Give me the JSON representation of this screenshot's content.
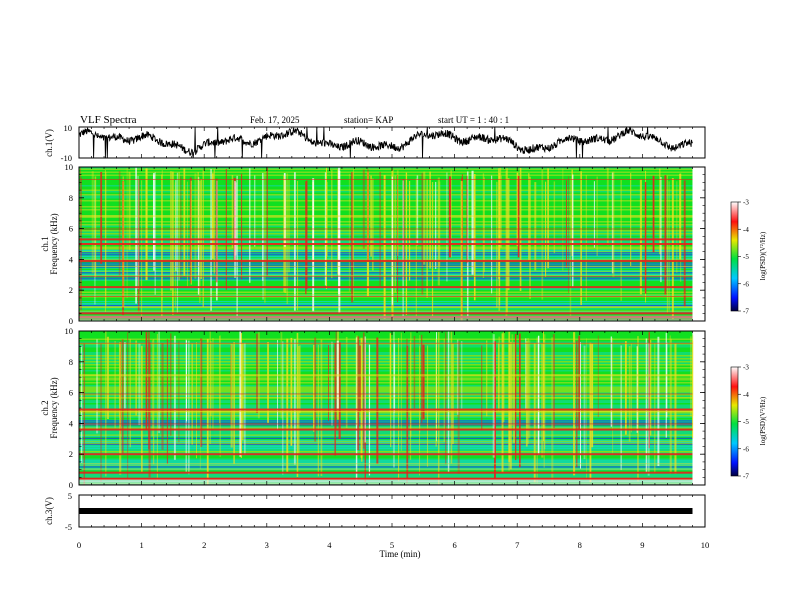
{
  "header": {
    "title": "VLF Spectra",
    "date": "Feb. 17, 2025",
    "station": "station= KAP",
    "start_ut": "start  UT =   1 : 40 : 1"
  },
  "chart_data": [
    {
      "type": "line",
      "name": "ch1-waveform",
      "ylabel": "ch.1(V)",
      "ylim": [
        -10,
        10
      ],
      "y_tick_labels": [
        "10",
        "-10"
      ],
      "x_range_min": [
        0,
        9.8
      ]
    },
    {
      "type": "heatmap",
      "name": "ch1-spectrogram",
      "ylabel": "ch.1\nFrequency  (kHz)",
      "ylim": [
        0,
        10
      ],
      "y_ticks": [
        0,
        2,
        4,
        6,
        8,
        10
      ],
      "x_range_min": [
        0,
        9.8
      ],
      "bands_khz": {
        "strong_red_lines": [
          0.25,
          0.5,
          2.2,
          3.9,
          5.0,
          5.3
        ],
        "blue_bands": [
          [
            2.7,
            3.3
          ],
          [
            3.5,
            3.8
          ],
          [
            4.0,
            4.6
          ],
          [
            1.0,
            1.3
          ]
        ]
      },
      "colorbar": {
        "label": "log(PSD)(V²/Hz)",
        "ticks": [
          "-3",
          "-4",
          "-5",
          "-6",
          "-7"
        ],
        "range": [
          -7,
          -3
        ]
      }
    },
    {
      "type": "heatmap",
      "name": "ch2-spectrogram",
      "ylabel": "ch.2\nFrequency  (kHz)",
      "ylim": [
        0,
        10
      ],
      "y_ticks": [
        0,
        2,
        4,
        6,
        8,
        10
      ],
      "x_range_min": [
        0,
        9.8
      ],
      "bands_khz": {
        "strong_red_lines": [
          0.4,
          0.8,
          2.0,
          3.6,
          4.9
        ],
        "blue_bands": [
          [
            2.3,
            3.2
          ],
          [
            1.0,
            1.6
          ],
          [
            3.7,
            4.2
          ]
        ]
      },
      "colorbar": {
        "label": "log(PSD)(V²/Hz)",
        "ticks": [
          "-3",
          "-4",
          "-5",
          "-6",
          "-7"
        ],
        "range": [
          -7,
          -3
        ]
      }
    },
    {
      "type": "line",
      "name": "ch3-signal",
      "ylabel": "ch.3(V)",
      "ylim": [
        -5,
        5
      ],
      "y_tick_labels": [
        "5",
        "-5"
      ],
      "x_range_min": [
        0,
        9.8
      ],
      "level_v": 0
    }
  ],
  "x_axis": {
    "label": "Time  (min)",
    "range": [
      0,
      10
    ],
    "tick_labels": [
      "0",
      "1",
      "2",
      "3",
      "4",
      "5",
      "6",
      "7",
      "8",
      "9",
      "10"
    ]
  },
  "colors": {
    "red": "#e8201a",
    "yellow": "#f0e020",
    "green": "#10e020",
    "cyan": "#10d8d0",
    "blue": "#1040e8"
  }
}
